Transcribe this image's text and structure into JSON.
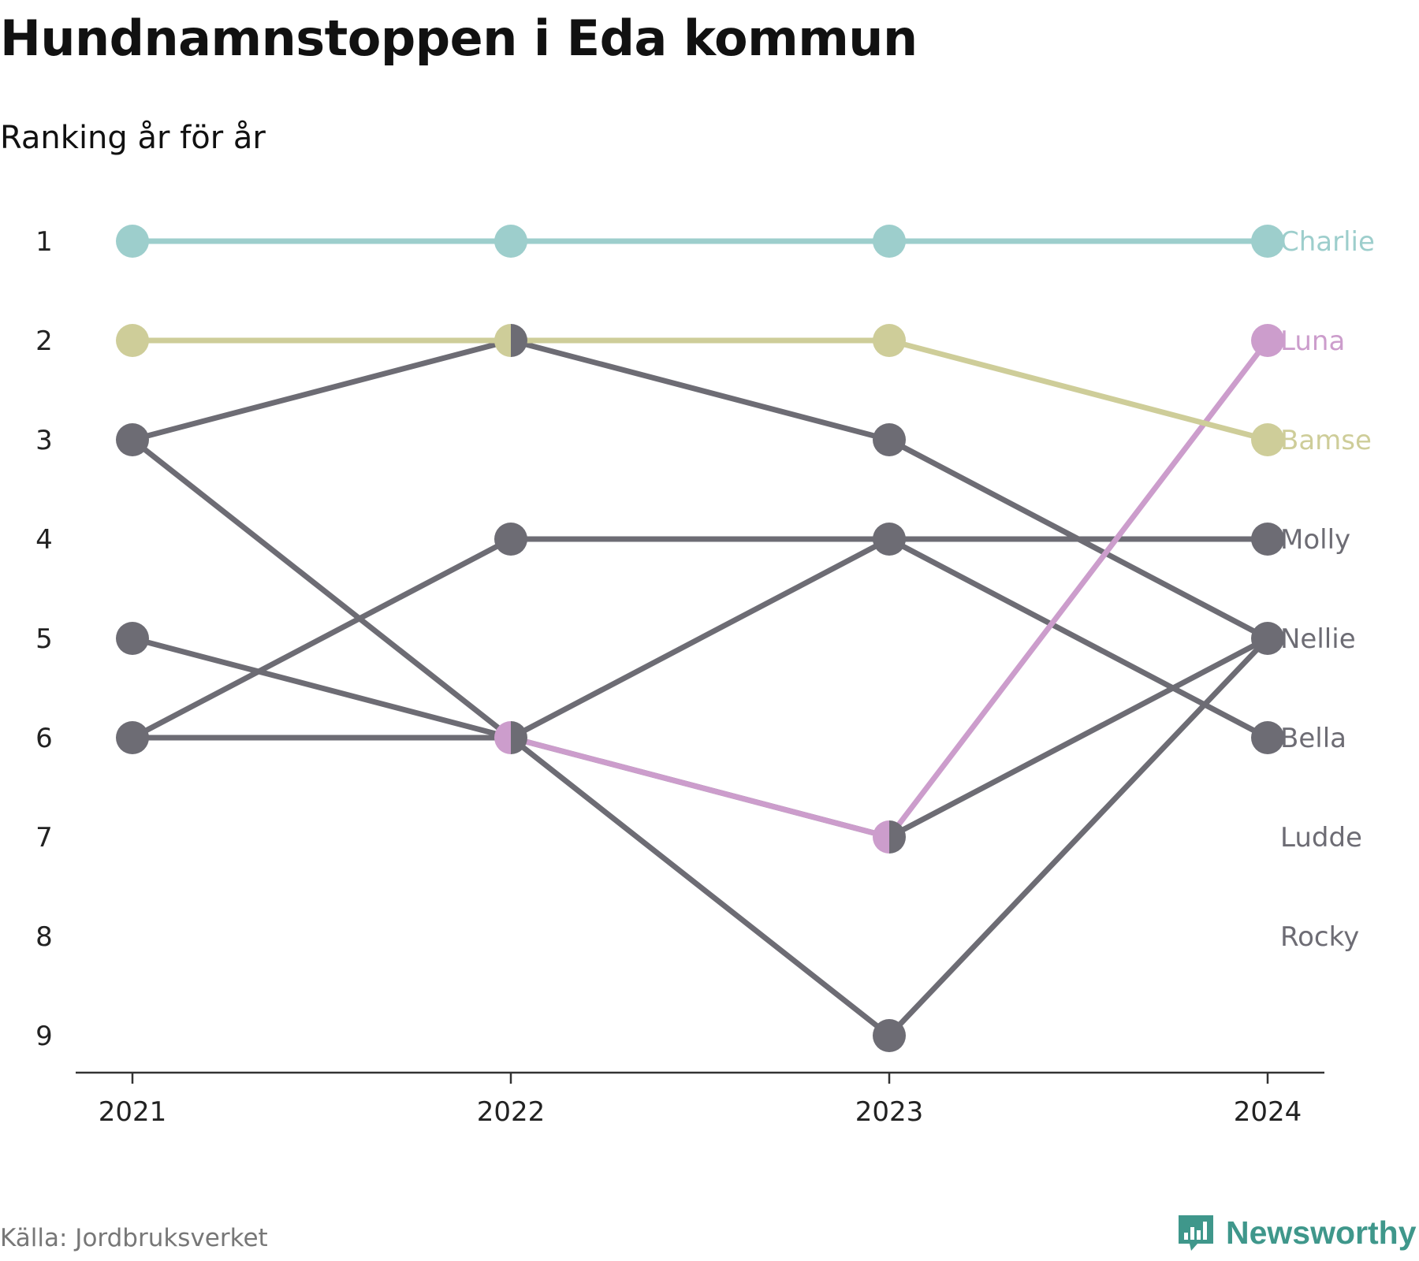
{
  "header": {
    "title": "Hundnamnstoppen i Eda kommun",
    "subtitle": "Ranking år för år"
  },
  "footer": {
    "source": "Källa: Jordbruksverket",
    "brand": "Newsworthy"
  },
  "colors": {
    "Charlie": "#9dcecc",
    "Bamse": "#cecd99",
    "Luna": "#cc9dcc",
    "other": "#6d6c74",
    "axis": "#333333",
    "brand": "#3f978b"
  },
  "chart_data": {
    "type": "line",
    "chart_style": "bump chart (rank over time)",
    "title": "Hundnamnstoppen i Eda kommun",
    "subtitle": "Ranking år för år",
    "x": [
      "2021",
      "2022",
      "2023",
      "2024"
    ],
    "y_ticks": [
      "1",
      "2",
      "3",
      "4",
      "5",
      "6",
      "7",
      "8",
      "9"
    ],
    "y_inverted": true,
    "ylim": [
      1,
      9
    ],
    "grid": false,
    "legend": "direct labels at right end",
    "series": [
      {
        "name": "Charlie",
        "values": [
          1,
          1,
          1,
          1
        ],
        "color": "#9dcecc",
        "highlight": true
      },
      {
        "name": "Luna",
        "values": [
          null,
          6,
          7,
          2
        ],
        "color": "#cc9dcc",
        "highlight": true
      },
      {
        "name": "Bamse",
        "values": [
          2,
          2,
          2,
          3
        ],
        "color": "#cecd99",
        "highlight": true
      },
      {
        "name": "Molly",
        "values": [
          6,
          4,
          4,
          4
        ],
        "color": "#6d6c74",
        "highlight": false
      },
      {
        "name": "Nellie",
        "values": [
          3,
          2,
          3,
          5
        ],
        "color": "#6d6c74",
        "highlight": false
      },
      {
        "name": "Bella",
        "values": [
          6,
          6,
          4,
          6
        ],
        "color": "#6d6c74",
        "highlight": false
      },
      {
        "name": "Ludde",
        "values": [
          5,
          6,
          7,
          5
        ],
        "color": "#6d6c74",
        "highlight": false
      },
      {
        "name": "Rocky",
        "values": [
          3,
          6,
          9,
          5
        ],
        "color": "#6d6c74",
        "highlight": false
      }
    ],
    "end_labels": [
      {
        "label": "Charlie",
        "rank": 1,
        "color": "#9dcecc"
      },
      {
        "label": "Luna",
        "rank": 2,
        "color": "#cc9dcc"
      },
      {
        "label": "Bamse",
        "rank": 3,
        "color": "#cecd99"
      },
      {
        "label": "Molly",
        "rank": 4,
        "color": "#6d6c74"
      },
      {
        "label": "Nellie",
        "rank": 5,
        "color": "#6d6c74"
      },
      {
        "label": "Bella",
        "rank": 6,
        "color": "#6d6c74"
      },
      {
        "label": "Ludde",
        "rank": 7,
        "color": "#6d6c74"
      },
      {
        "label": "Rocky",
        "rank": 8,
        "color": "#6d6c74"
      }
    ]
  }
}
